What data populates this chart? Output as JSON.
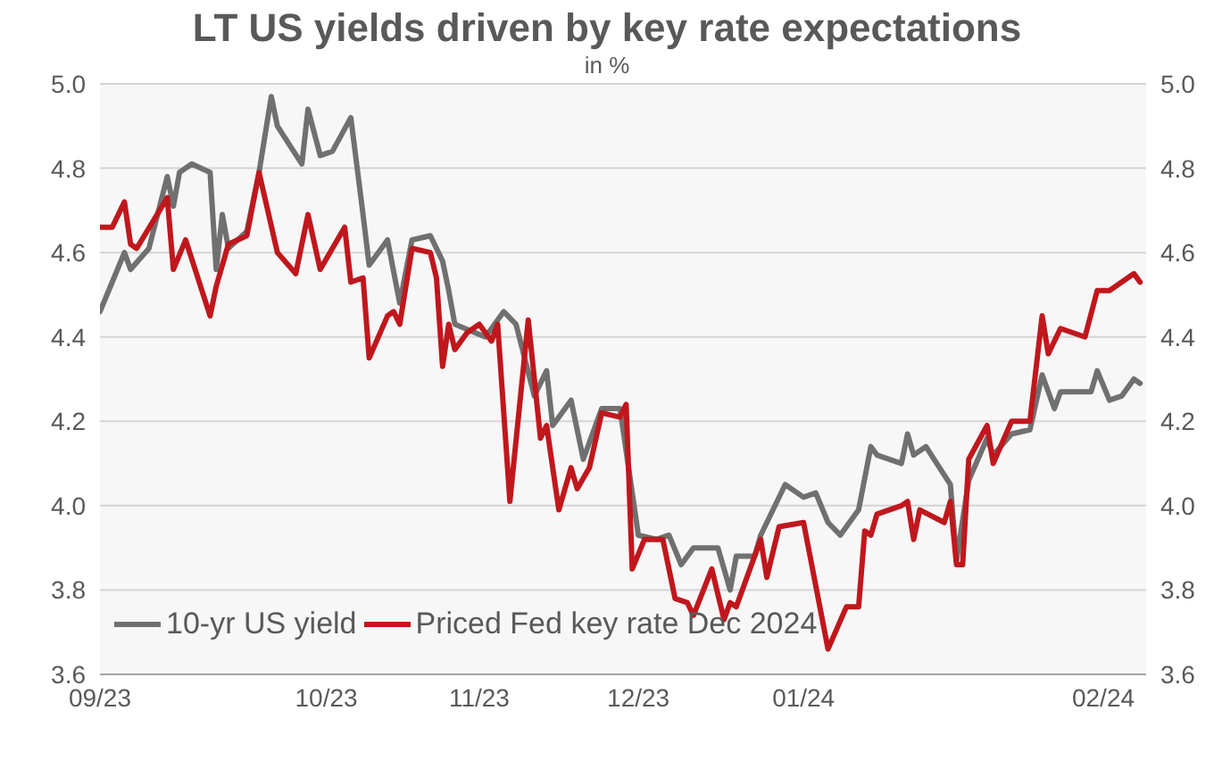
{
  "chart_data": {
    "type": "line",
    "title": "LT US yields driven by key rate expectations",
    "subtitle": "in %",
    "xlim": [
      "2023-09-01",
      "2024-02-19"
    ],
    "xticks": [
      {
        "value": "2023-09-01",
        "label": "09/23"
      },
      {
        "value": "2023-10-08",
        "label": "10/23"
      },
      {
        "value": "2023-11-02",
        "label": "11/23"
      },
      {
        "value": "2023-11-28",
        "label": "12/23"
      },
      {
        "value": "2023-12-25",
        "label": "01/24"
      },
      {
        "value": "2024-02-12",
        "label": "02/24"
      }
    ],
    "ylim": [
      3.6,
      5.0
    ],
    "yticks": [
      {
        "value": 3.6,
        "label": "3.6"
      },
      {
        "value": 3.8,
        "label": "3.8"
      },
      {
        "value": 4.0,
        "label": "4.0"
      },
      {
        "value": 4.2,
        "label": "4.2"
      },
      {
        "value": 4.4,
        "label": "4.4"
      },
      {
        "value": 4.6,
        "label": "4.6"
      },
      {
        "value": 4.8,
        "label": "4.8"
      },
      {
        "value": 5.0,
        "label": "5.0"
      }
    ],
    "y2lim": [
      3.6,
      5.0
    ],
    "y2ticks": [
      {
        "value": 3.6,
        "label": "3.6"
      },
      {
        "value": 3.8,
        "label": "3.8"
      },
      {
        "value": 4.0,
        "label": "4.0"
      },
      {
        "value": 4.2,
        "label": "4.2"
      },
      {
        "value": 4.4,
        "label": "4.4"
      },
      {
        "value": 4.6,
        "label": "4.6"
      },
      {
        "value": 4.8,
        "label": "4.8"
      },
      {
        "value": 5.0,
        "label": "5.0"
      }
    ],
    "grid": "y",
    "legend": "bottom left",
    "line_style": "solid",
    "series": [
      {
        "name": "10-yr US yield",
        "color": "#707070",
        "x": [
          "2023-09-01",
          "2023-09-03",
          "2023-09-05",
          "2023-09-06",
          "2023-09-09",
          "2023-09-12",
          "2023-09-13",
          "2023-09-14",
          "2023-09-16",
          "2023-09-19",
          "2023-09-20",
          "2023-09-21",
          "2023-09-22",
          "2023-09-25",
          "2023-09-27",
          "2023-09-29",
          "2023-09-30",
          "2023-10-04",
          "2023-10-05",
          "2023-10-07",
          "2023-10-09",
          "2023-10-12",
          "2023-10-14",
          "2023-10-15",
          "2023-10-18",
          "2023-10-20",
          "2023-10-22",
          "2023-10-25",
          "2023-10-27",
          "2023-10-28",
          "2023-10-29",
          "2023-11-03",
          "2023-11-06",
          "2023-11-08",
          "2023-11-11",
          "2023-11-13",
          "2023-11-14",
          "2023-11-17",
          "2023-11-19",
          "2023-11-22",
          "2023-11-25",
          "2023-11-28",
          "2023-12-01",
          "2023-12-03",
          "2023-12-05",
          "2023-12-07",
          "2023-12-11",
          "2023-12-13",
          "2023-12-14",
          "2023-12-17",
          "2023-12-18",
          "2023-12-22",
          "2023-12-25",
          "2023-12-27",
          "2023-12-29",
          "2023-12-31",
          "2024-01-03",
          "2024-01-05",
          "2024-01-06",
          "2024-01-10",
          "2024-01-11",
          "2024-01-12",
          "2024-01-14",
          "2024-01-18",
          "2024-01-19",
          "2024-01-21",
          "2024-01-24",
          "2024-01-25",
          "2024-01-28",
          "2024-01-31",
          "2024-02-02",
          "2024-02-04",
          "2024-02-05",
          "2024-02-10",
          "2024-02-11",
          "2024-02-13",
          "2024-02-15",
          "2024-02-17",
          "2024-02-18"
        ],
        "values": [
          4.46,
          4.53,
          4.6,
          4.56,
          4.61,
          4.78,
          4.71,
          4.79,
          4.81,
          4.79,
          4.56,
          4.69,
          4.61,
          4.65,
          4.79,
          4.97,
          4.9,
          4.81,
          4.94,
          4.83,
          4.84,
          4.92,
          4.69,
          4.57,
          4.63,
          4.48,
          4.63,
          4.64,
          4.58,
          4.51,
          4.43,
          4.4,
          4.46,
          4.43,
          4.26,
          4.32,
          4.19,
          4.25,
          4.11,
          4.23,
          4.23,
          3.93,
          3.92,
          3.93,
          3.86,
          3.9,
          3.9,
          3.8,
          3.88,
          3.88,
          3.93,
          4.05,
          4.02,
          4.03,
          3.96,
          3.93,
          3.99,
          4.14,
          4.12,
          4.1,
          4.17,
          4.12,
          4.14,
          4.05,
          3.87,
          4.06,
          4.16,
          4.12,
          4.17,
          4.18,
          4.31,
          4.23,
          4.27,
          4.27,
          4.32,
          4.25,
          4.26,
          4.3,
          4.29
        ]
      },
      {
        "name": "Priced Fed key rate Dec 2024",
        "color": "#c0171d",
        "x": [
          "2023-09-01",
          "2023-09-03",
          "2023-09-05",
          "2023-09-06",
          "2023-09-07",
          "2023-09-12",
          "2023-09-13",
          "2023-09-15",
          "2023-09-19",
          "2023-09-20",
          "2023-09-22",
          "2023-09-25",
          "2023-09-27",
          "2023-09-30",
          "2023-10-03",
          "2023-10-05",
          "2023-10-07",
          "2023-10-11",
          "2023-10-12",
          "2023-10-14",
          "2023-10-15",
          "2023-10-18",
          "2023-10-19",
          "2023-10-20",
          "2023-10-22",
          "2023-10-25",
          "2023-10-26",
          "2023-10-27",
          "2023-10-28",
          "2023-10-29",
          "2023-10-31",
          "2023-11-02",
          "2023-11-04",
          "2023-11-05",
          "2023-11-07",
          "2023-11-10",
          "2023-11-12",
          "2023-11-13",
          "2023-11-15",
          "2023-11-17",
          "2023-11-18",
          "2023-11-20",
          "2023-11-22",
          "2023-11-25",
          "2023-11-26",
          "2023-11-27",
          "2023-11-29",
          "2023-12-02",
          "2023-12-04",
          "2023-12-06",
          "2023-12-07",
          "2023-12-10",
          "2023-12-12",
          "2023-12-13",
          "2023-12-14",
          "2023-12-17",
          "2023-12-18",
          "2023-12-19",
          "2023-12-21",
          "2023-12-25",
          "2023-12-29",
          "2024-01-01",
          "2024-01-03",
          "2024-01-04",
          "2024-01-05",
          "2024-01-06",
          "2024-01-10",
          "2024-01-11",
          "2024-01-12",
          "2024-01-13",
          "2024-01-17",
          "2024-01-18",
          "2024-01-19",
          "2024-01-20",
          "2024-01-21",
          "2024-01-24",
          "2024-01-25",
          "2024-01-28",
          "2024-01-31",
          "2024-02-02",
          "2024-02-03",
          "2024-02-05",
          "2024-02-09",
          "2024-02-11",
          "2024-02-13",
          "2024-02-17",
          "2024-02-18"
        ],
        "values": [
          4.66,
          4.66,
          4.72,
          4.62,
          4.61,
          4.73,
          4.56,
          4.63,
          4.45,
          4.52,
          4.62,
          4.64,
          4.79,
          4.6,
          4.55,
          4.69,
          4.56,
          4.66,
          4.53,
          4.54,
          4.35,
          4.45,
          4.46,
          4.43,
          4.61,
          4.6,
          4.54,
          4.33,
          4.43,
          4.37,
          4.41,
          4.43,
          4.39,
          4.43,
          4.01,
          4.44,
          4.16,
          4.19,
          3.99,
          4.09,
          4.04,
          4.09,
          4.22,
          4.21,
          4.24,
          3.85,
          3.92,
          3.92,
          3.78,
          3.77,
          3.74,
          3.85,
          3.73,
          3.77,
          3.76,
          3.88,
          3.92,
          3.83,
          3.95,
          3.96,
          3.66,
          3.76,
          3.76,
          3.94,
          3.93,
          3.98,
          4.0,
          4.01,
          3.92,
          3.99,
          3.96,
          4.01,
          3.86,
          3.86,
          4.11,
          4.19,
          4.1,
          4.2,
          4.2,
          4.45,
          4.36,
          4.42,
          4.4,
          4.51,
          4.51,
          4.55,
          4.53
        ]
      }
    ]
  }
}
